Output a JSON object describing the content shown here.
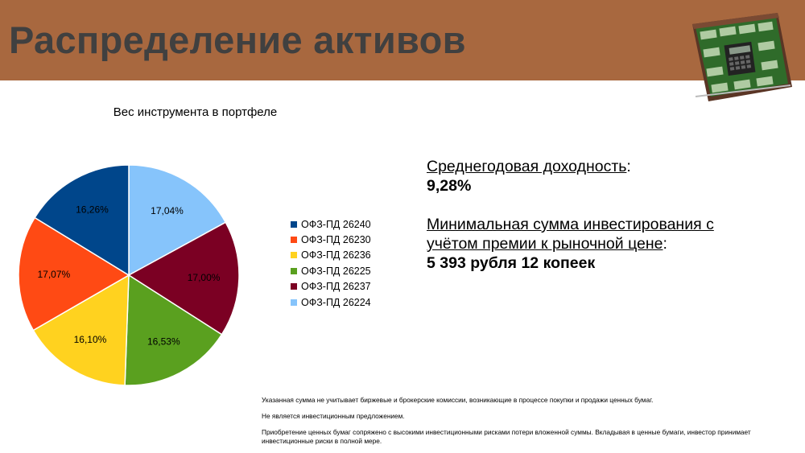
{
  "header": {
    "title": "Распределение активов",
    "background_color": "#a8683f",
    "title_color": "#404040",
    "image": "briefcase-of-money-icon"
  },
  "chart_data": {
    "type": "pie",
    "title": "Вес инструмента в портфеле",
    "start_angle_deg": 0,
    "direction": "clockwise",
    "legend_position": "right",
    "slices": [
      {
        "label": "ОФЗ-ПД 26224",
        "value": 17.04,
        "value_label": "17,04%",
        "color": "#86c4fb"
      },
      {
        "label": "ОФЗ-ПД 26237",
        "value": 17.0,
        "value_label": "17,00%",
        "color": "#7b0023"
      },
      {
        "label": "ОФЗ-ПД 26225",
        "value": 16.53,
        "value_label": "16,53%",
        "color": "#5aa01f"
      },
      {
        "label": "ОФЗ-ПД 26236",
        "value": 16.1,
        "value_label": "16,10%",
        "color": "#ffd21f"
      },
      {
        "label": "ОФЗ-ПД 26230",
        "value": 17.07,
        "value_label": "17,07%",
        "color": "#ff4a14"
      },
      {
        "label": "ОФЗ-ПД 26240",
        "value": 16.26,
        "value_label": "16,26%",
        "color": "#00468b"
      }
    ],
    "legend": [
      {
        "label": "ОФЗ-ПД 26240",
        "color": "#00468b"
      },
      {
        "label": "ОФЗ-ПД 26230",
        "color": "#ff4a14"
      },
      {
        "label": "ОФЗ-ПД 26236",
        "color": "#ffd21f"
      },
      {
        "label": "ОФЗ-ПД 26225",
        "color": "#5aa01f"
      },
      {
        "label": "ОФЗ-ПД 26237",
        "color": "#7b0023"
      },
      {
        "label": "ОФЗ-ПД 26224",
        "color": "#86c4fb"
      }
    ]
  },
  "info": {
    "yield_label": "Среднегодовая доходность",
    "yield_colon": ":",
    "yield_value": "9,28%",
    "min_sum_label": "Минимальная сумма инвестирования с учётом премии к рыночной цене",
    "min_sum_colon": ":",
    "min_sum_value": "5 393 рубля 12 копеек"
  },
  "disclaimer": [
    "Указанная сумма не учитывает биржевые и брокерские комиссии, возникающие в процессе покупки и продажи ценных бумаг.",
    "Не является инвестиционным предложением.",
    "Приобретение ценных бумаг сопряжено с высокими инвестиционными рисками потери вложенной суммы. Вкладывая в ценные бумаги, инвестор принимает инвестиционные риски в полной мере."
  ]
}
